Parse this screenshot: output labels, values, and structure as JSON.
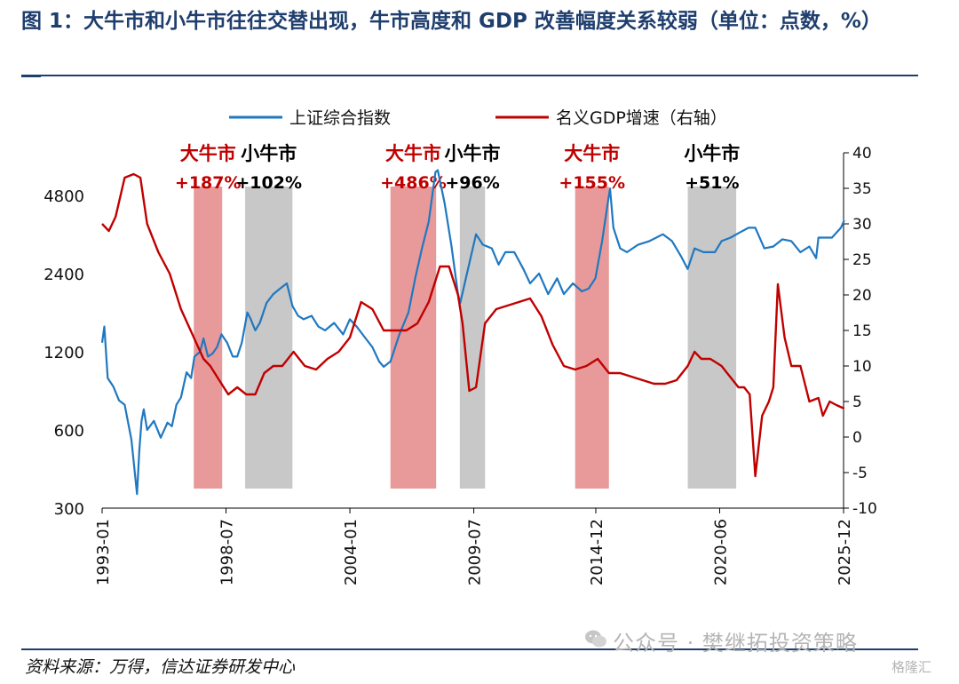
{
  "header": {
    "title": "图 1：大牛市和小牛市往往交替出现，牛市高度和 GDP 改善幅度关系较弱（单位：点数，%）"
  },
  "footer": {
    "source": "资料来源：万得，信达证券研发中心",
    "watermark": "公众号 · 樊继拓投资策略",
    "corner_logo": "格隆汇"
  },
  "colors": {
    "index_line": "#1f78c1",
    "gdp_line": "#c00000",
    "big_bull_band": "#e89a9a",
    "small_bull_band": "#c8c8c8",
    "big_bull_text": "#c00000",
    "small_bull_text": "#000000",
    "title": "#1f3e6e"
  },
  "chart_data": {
    "type": "line",
    "legend": {
      "placement": "top",
      "entries": [
        "上证综合指数",
        "名义GDP增速（右轴）"
      ]
    },
    "x_axis": {
      "range": [
        "1993-01",
        "2025-12"
      ],
      "tick_labels": [
        "1993-01",
        "1998-07",
        "2004-01",
        "2009-07",
        "2014-12",
        "2020-06",
        "2025-12"
      ]
    },
    "y_left": {
      "scale": "log",
      "range": [
        300,
        7000
      ],
      "tick_values": [
        300,
        600,
        1200,
        2400,
        4800
      ],
      "tick_labels": [
        "300",
        "600",
        "1200",
        "2400",
        "4800"
      ]
    },
    "y_right": {
      "range": [
        -10,
        40
      ],
      "tick_values": [
        -10,
        -5,
        0,
        5,
        10,
        15,
        20,
        25,
        30,
        35,
        40
      ],
      "tick_labels": [
        "-10",
        "-5",
        "0",
        "5",
        "10",
        "15",
        "20",
        "25",
        "30",
        "35",
        "40"
      ]
    },
    "bands": [
      {
        "start": 1997.07,
        "end": 1998.33,
        "kind": "big",
        "label_top": "大牛市",
        "label_bottom": "+187%"
      },
      {
        "start": 1999.35,
        "end": 2001.45,
        "kind": "small",
        "label_top": "小牛市",
        "label_bottom": "+102%"
      },
      {
        "start": 2005.8,
        "end": 2007.83,
        "kind": "big",
        "label_top": "大牛市",
        "label_bottom": "+486%"
      },
      {
        "start": 2008.88,
        "end": 2010.0,
        "kind": "small",
        "label_top": "小牛市",
        "label_bottom": "+96%"
      },
      {
        "start": 2014.0,
        "end": 2015.5,
        "kind": "big",
        "label_top": "大牛市",
        "label_bottom": "+155%"
      },
      {
        "start": 2019.0,
        "end": 2021.15,
        "kind": "small",
        "label_top": "小牛市",
        "label_bottom": "+51%"
      }
    ],
    "series": [
      {
        "name": "上证综合指数",
        "axis": "left",
        "x": [
          1993.0,
          1993.1,
          1993.25,
          1993.5,
          1993.75,
          1994.0,
          1994.3,
          1994.55,
          1994.65,
          1994.75,
          1994.85,
          1995.0,
          1995.3,
          1995.6,
          1995.9,
          1996.1,
          1996.3,
          1996.5,
          1996.75,
          1996.95,
          1997.1,
          1997.35,
          1997.5,
          1997.7,
          1997.9,
          1998.1,
          1998.3,
          1998.55,
          1998.8,
          1999.0,
          1999.2,
          1999.45,
          1999.6,
          1999.8,
          2000.0,
          2000.3,
          2000.6,
          2000.9,
          2001.2,
          2001.45,
          2001.7,
          2001.95,
          2002.3,
          2002.6,
          2002.9,
          2003.3,
          2003.7,
          2004.0,
          2004.3,
          2004.7,
          2005.0,
          2005.3,
          2005.5,
          2005.8,
          2006.2,
          2006.6,
          2006.9,
          2007.2,
          2007.5,
          2007.8,
          2007.9,
          2008.2,
          2008.5,
          2008.8,
          2008.9,
          2009.2,
          2009.6,
          2009.9,
          2010.3,
          2010.6,
          2010.9,
          2011.3,
          2011.7,
          2012.0,
          2012.4,
          2012.8,
          2013.2,
          2013.5,
          2013.9,
          2014.3,
          2014.6,
          2014.9,
          2015.2,
          2015.45,
          2015.55,
          2015.7,
          2016.0,
          2016.3,
          2016.8,
          2017.3,
          2017.9,
          2018.3,
          2018.7,
          2019.0,
          2019.3,
          2019.7,
          2020.2,
          2020.5,
          2020.9,
          2021.3,
          2021.7,
          2022.0,
          2022.4,
          2022.8,
          2023.2,
          2023.6,
          2024.0,
          2024.4,
          2024.7,
          2024.8,
          2025.0,
          2025.4,
          2025.8,
          2025.95
        ],
        "values": [
          1300,
          1500,
          950,
          880,
          780,
          750,
          550,
          340,
          500,
          650,
          720,
          600,
          650,
          560,
          640,
          620,
          750,
          800,
          1000,
          950,
          1150,
          1200,
          1350,
          1150,
          1180,
          1250,
          1400,
          1300,
          1150,
          1150,
          1300,
          1700,
          1600,
          1450,
          1550,
          1850,
          2000,
          2100,
          2200,
          1800,
          1650,
          1600,
          1650,
          1500,
          1450,
          1550,
          1400,
          1600,
          1500,
          1350,
          1250,
          1100,
          1050,
          1100,
          1400,
          1700,
          2300,
          3000,
          3800,
          5900,
          6000,
          4500,
          3100,
          2000,
          1850,
          2400,
          3400,
          3100,
          3000,
          2600,
          2900,
          2900,
          2500,
          2200,
          2400,
          2000,
          2300,
          2000,
          2200,
          2050,
          2100,
          2300,
          3200,
          4500,
          5100,
          3600,
          3000,
          2900,
          3100,
          3200,
          3400,
          3200,
          2800,
          2500,
          3000,
          2900,
          2900,
          3200,
          3300,
          3450,
          3600,
          3600,
          3000,
          3050,
          3250,
          3200,
          2900,
          3050,
          2750,
          3300,
          3300,
          3300,
          3600,
          3850
        ]
      },
      {
        "name": "名义GDP增速（右轴）",
        "axis": "right",
        "x": [
          1993.0,
          1993.3,
          1993.6,
          1994.0,
          1994.4,
          1994.7,
          1995.0,
          1995.5,
          1996.0,
          1996.5,
          1997.0,
          1997.5,
          1997.8,
          1998.2,
          1998.6,
          1999.0,
          1999.4,
          1999.8,
          2000.2,
          2000.6,
          2001.0,
          2001.5,
          2002.0,
          2002.5,
          2003.0,
          2003.5,
          2004.0,
          2004.5,
          2005.0,
          2005.5,
          2006.0,
          2006.5,
          2007.0,
          2007.5,
          2008.0,
          2008.4,
          2008.8,
          2009.0,
          2009.3,
          2009.6,
          2010.0,
          2010.5,
          2011.0,
          2011.5,
          2012.0,
          2012.5,
          2013.0,
          2013.5,
          2014.0,
          2014.5,
          2015.0,
          2015.5,
          2016.0,
          2016.5,
          2017.0,
          2017.5,
          2018.0,
          2018.5,
          2019.0,
          2019.3,
          2019.6,
          2019.8,
          2020.0,
          2020.25,
          2020.5,
          2020.75,
          2021.0,
          2021.25,
          2021.5,
          2021.75,
          2022.0,
          2022.3,
          2022.6,
          2022.8,
          2023.0,
          2023.3,
          2023.6,
          2024.0,
          2024.4,
          2024.8,
          2025.0,
          2025.3,
          2025.6,
          2025.95
        ],
        "values": [
          30,
          29,
          31,
          36.5,
          37,
          36.5,
          30,
          26,
          23,
          18,
          14.5,
          11,
          10,
          8,
          6,
          7,
          6,
          6,
          9,
          10,
          10,
          12,
          10,
          9.5,
          11,
          12,
          14,
          19,
          18,
          15,
          15,
          15,
          16,
          19,
          24,
          24,
          20,
          16,
          6.5,
          7,
          16,
          18,
          18.5,
          19,
          19.5,
          17,
          13,
          10,
          9.5,
          10,
          11,
          9,
          9,
          8.5,
          8,
          7.5,
          7.5,
          8,
          10,
          12,
          11,
          11,
          11,
          10.5,
          10,
          9,
          8,
          7,
          7,
          6,
          -5.5,
          3,
          5,
          7,
          21.5,
          14,
          10,
          10,
          5,
          5.5,
          3,
          5,
          4.5,
          4
        ]
      }
    ]
  }
}
